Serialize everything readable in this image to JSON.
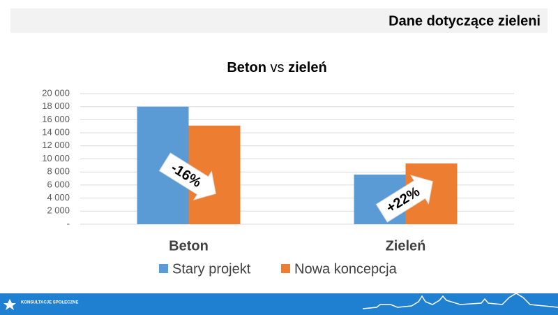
{
  "header": {
    "title": "Dane dotyczące zieleni"
  },
  "footer": {
    "logo": "KONSULTACJE SPOŁECZNE"
  },
  "chart_data": {
    "type": "bar",
    "title": [
      "Beton",
      "vs",
      "zieleń"
    ],
    "categories": [
      "Beton",
      "Zieleń"
    ],
    "series": [
      {
        "name": "Stary projekt",
        "color": "#5b9bd5",
        "values": [
          18000,
          7600
        ]
      },
      {
        "name": "Nowa koncepcja",
        "color": "#ed7d31",
        "values": [
          15100,
          9300
        ]
      }
    ],
    "ylim": [
      0,
      20000
    ],
    "yticks": [
      {
        "value": 0,
        "label": "-"
      },
      {
        "value": 2000,
        "label": "2 000"
      },
      {
        "value": 4000,
        "label": "4 000"
      },
      {
        "value": 6000,
        "label": "6 000"
      },
      {
        "value": 8000,
        "label": "8 000"
      },
      {
        "value": 10000,
        "label": "10 000"
      },
      {
        "value": 12000,
        "label": "12 000"
      },
      {
        "value": 14000,
        "label": "14 000"
      },
      {
        "value": 16000,
        "label": "16 000"
      },
      {
        "value": 18000,
        "label": "18 000"
      },
      {
        "value": 20000,
        "label": "20 000"
      }
    ],
    "grid": true,
    "legend": "bottom",
    "annotations": [
      "-16%",
      "+22%"
    ]
  }
}
